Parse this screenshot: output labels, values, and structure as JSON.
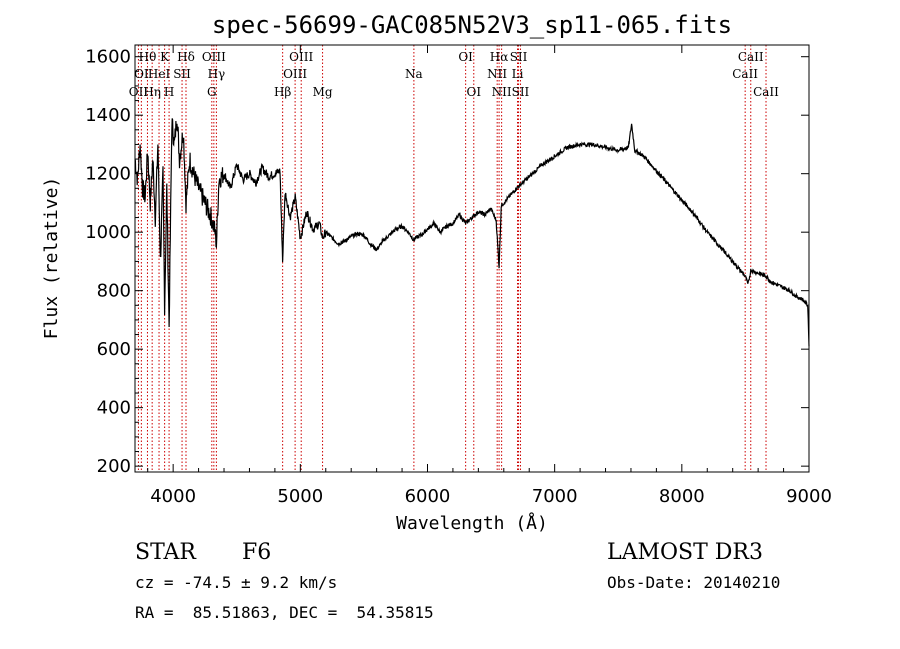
{
  "chart_data": {
    "type": "line",
    "title": "spec-56699-GAC085N52V3_sp11-065.fits",
    "xlabel": "Wavelength (Å)",
    "ylabel": "Flux (relative)",
    "xlim": [
      3700,
      9000
    ],
    "ylim": [
      180,
      1640
    ],
    "xticks": [
      4000,
      5000,
      6000,
      7000,
      8000,
      9000
    ],
    "yticks": [
      200,
      400,
      600,
      800,
      1000,
      1200,
      1400,
      1600
    ],
    "series": [
      {
        "name": "flux",
        "x": [
          3700,
          3720,
          3740,
          3760,
          3780,
          3800,
          3820,
          3840,
          3860,
          3880,
          3900,
          3920,
          3933,
          3950,
          3968,
          3990,
          4010,
          4030,
          4050,
          4080,
          4101,
          4130,
          4160,
          4200,
          4250,
          4300,
          4330,
          4340,
          4360,
          4400,
          4450,
          4500,
          4550,
          4600,
          4650,
          4700,
          4750,
          4800,
          4840,
          4861,
          4880,
          4920,
          4960,
          5000,
          5050,
          5100,
          5150,
          5175,
          5200,
          5250,
          5300,
          5350,
          5400,
          5450,
          5500,
          5550,
          5600,
          5650,
          5700,
          5750,
          5800,
          5850,
          5890,
          5950,
          6000,
          6050,
          6100,
          6150,
          6200,
          6250,
          6300,
          6350,
          6400,
          6450,
          6500,
          6540,
          6563,
          6580,
          6620,
          6700,
          6800,
          6900,
          7000,
          7100,
          7200,
          7300,
          7400,
          7500,
          7580,
          7605,
          7630,
          7700,
          7800,
          7900,
          8000,
          8100,
          8200,
          8300,
          8400,
          8498,
          8520,
          8542,
          8600,
          8662,
          8700,
          8800,
          8850,
          8900,
          8950,
          8990,
          9000
        ],
        "values": [
          1250,
          1180,
          1300,
          1150,
          1120,
          1280,
          1100,
          1250,
          1050,
          1300,
          900,
          1200,
          750,
          1150,
          680,
          1380,
          1300,
          1400,
          1250,
          1350,
          1100,
          1250,
          1200,
          1150,
          1100,
          1050,
          1000,
          960,
          1180,
          1200,
          1150,
          1230,
          1180,
          1200,
          1170,
          1220,
          1190,
          1200,
          1210,
          900,
          1140,
          1050,
          1120,
          980,
          1070,
          1010,
          1030,
          980,
          1000,
          980,
          960,
          970,
          985,
          995,
          990,
          960,
          940,
          970,
          990,
          1010,
          1020,
          1000,
          975,
          990,
          1010,
          1030,
          1000,
          1020,
          1030,
          1060,
          1030,
          1050,
          1070,
          1060,
          1080,
          1040,
          880,
          1090,
          1110,
          1150,
          1190,
          1230,
          1260,
          1290,
          1300,
          1300,
          1290,
          1280,
          1290,
          1370,
          1280,
          1260,
          1210,
          1160,
          1110,
          1060,
          1000,
          950,
          900,
          850,
          820,
          870,
          860,
          850,
          830,
          810,
          800,
          780,
          770,
          750,
          610
        ]
      }
    ],
    "lines": [
      {
        "name": "OII",
        "wl": 3727,
        "row": 3
      },
      {
        "name": "Hθ",
        "wl": 3798,
        "row": 1
      },
      {
        "name": "OI",
        "wl": 3750,
        "row": 2
      },
      {
        "name": "Hη",
        "wl": 3835,
        "row": 3
      },
      {
        "name": "HeI",
        "wl": 3889,
        "row": 2
      },
      {
        "name": "K",
        "wl": 3933,
        "row": 1
      },
      {
        "name": "H",
        "wl": 3968,
        "row": 3
      },
      {
        "name": "SII",
        "wl": 4070,
        "row": 2
      },
      {
        "name": "Hδ",
        "wl": 4101,
        "row": 1
      },
      {
        "name": "G",
        "wl": 4304,
        "row": 3
      },
      {
        "name": "OIII",
        "wl": 4320,
        "row": 1
      },
      {
        "name": "Hγ",
        "wl": 4340,
        "row": 2
      },
      {
        "name": "Hβ",
        "wl": 4861,
        "row": 3
      },
      {
        "name": "OIII",
        "wl": 4959,
        "row": 2
      },
      {
        "name": "OIII",
        "wl": 5007,
        "row": 1
      },
      {
        "name": "Mg",
        "wl": 5175,
        "row": 3
      },
      {
        "name": "Na",
        "wl": 5893,
        "row": 2
      },
      {
        "name": "OI",
        "wl": 6300,
        "row": 1
      },
      {
        "name": "OI",
        "wl": 6364,
        "row": 3
      },
      {
        "name": "NII",
        "wl": 6548,
        "row": 2
      },
      {
        "name": "Hα",
        "wl": 6563,
        "row": 1
      },
      {
        "name": "NII",
        "wl": 6583,
        "row": 3
      },
      {
        "name": "SII",
        "wl": 6716,
        "row": 1
      },
      {
        "name": "Li",
        "wl": 6708,
        "row": 2
      },
      {
        "name": "SII",
        "wl": 6731,
        "row": 3
      },
      {
        "name": "CaII",
        "wl": 8498,
        "row": 2
      },
      {
        "name": "CaII",
        "wl": 8542,
        "row": 1
      },
      {
        "name": "CaII",
        "wl": 8662,
        "row": 3
      }
    ]
  },
  "info": {
    "class": "STAR",
    "subclass": "F6",
    "cz": "cz = -74.5 ± 9.2 km/s",
    "radec": "RA =  85.51863, DEC =  54.35815",
    "survey": "LAMOST DR3",
    "obsdate": "Obs-Date: 20140210"
  },
  "colors": {
    "line_marker": "#cc0000",
    "axis": "#000000"
  }
}
